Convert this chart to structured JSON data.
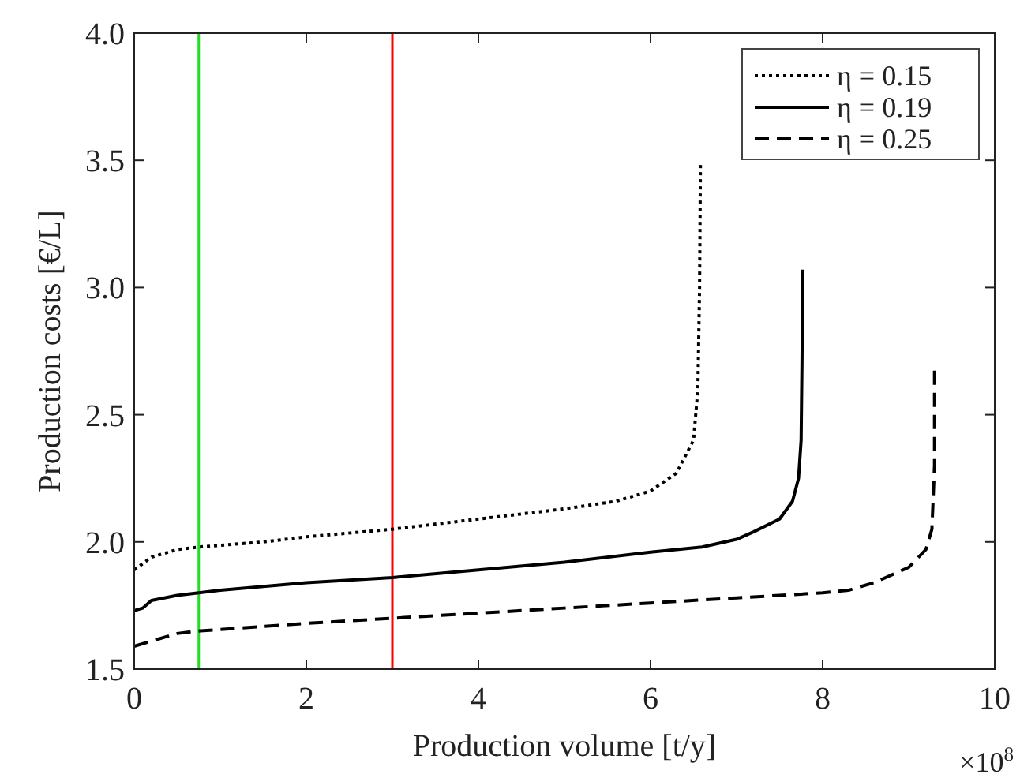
{
  "chart_data": {
    "type": "line",
    "xlabel": "Production volume [t/y]",
    "ylabel": "Production costs [€/L]",
    "xlim": [
      0,
      10
    ],
    "xticks": [
      0,
      2,
      4,
      6,
      8,
      10
    ],
    "ylim": [
      1.5,
      4
    ],
    "yticks": [
      1.5,
      {
        "value": 2,
        "label": "2.0"
      },
      2.5,
      {
        "value": 3,
        "label": "3.0"
      },
      3.5,
      {
        "value": 4,
        "label": "4.0"
      }
    ],
    "grid": false,
    "legend": "top right",
    "annotations": [
      "×10$^{8}$"
    ],
    "ref_lines": [
      {
        "axis": "x",
        "value": 0.75,
        "label": null,
        "color": "#22dd22"
      },
      {
        "axis": "x",
        "value": 3,
        "label": null,
        "color": "#ff0000"
      }
    ],
    "series": [
      {
        "name": "η = 0.15",
        "color": "#000000",
        "line_style": "dotted",
        "x": [
          0,
          0.2,
          0.5,
          0.75,
          1.5,
          2,
          3,
          4,
          5,
          5.6,
          6,
          6.3,
          6.5,
          6.55,
          6.57,
          6.58
        ],
        "values": [
          1.89,
          1.94,
          1.97,
          1.98,
          2.0,
          2.02,
          2.05,
          2.09,
          2.13,
          2.16,
          2.2,
          2.27,
          2.4,
          2.6,
          3.0,
          3.49
        ]
      },
      {
        "name": "η = 0.19",
        "color": "#000000",
        "line_style": "solid",
        "x": [
          0,
          0.1,
          0.2,
          0.5,
          0.75,
          1,
          2,
          3,
          4,
          5,
          6,
          6.6,
          7,
          7.2,
          7.5,
          7.65,
          7.72,
          7.75,
          7.76,
          7.77
        ],
        "values": [
          1.73,
          1.74,
          1.77,
          1.79,
          1.8,
          1.81,
          1.84,
          1.86,
          1.89,
          1.92,
          1.96,
          1.98,
          2.01,
          2.04,
          2.09,
          2.16,
          2.25,
          2.4,
          2.7,
          3.07
        ]
      },
      {
        "name": "η = 0.25",
        "color": "#000000",
        "line_style": "dashed",
        "x": [
          0,
          0.2,
          0.5,
          0.75,
          2,
          3,
          4,
          5,
          6,
          7,
          8,
          8.3,
          8.6,
          9,
          9.2,
          9.27,
          9.3,
          9.3
        ],
        "values": [
          1.59,
          1.61,
          1.64,
          1.65,
          1.68,
          1.7,
          1.72,
          1.74,
          1.76,
          1.78,
          1.8,
          1.81,
          1.84,
          1.9,
          1.97,
          2.05,
          2.3,
          2.69
        ]
      }
    ]
  }
}
